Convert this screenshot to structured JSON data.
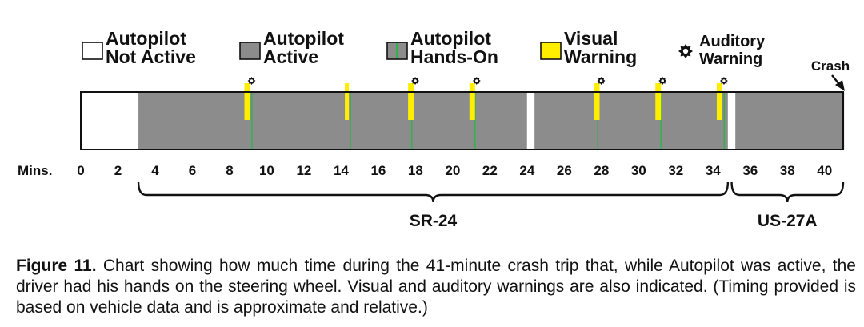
{
  "chart_data": {
    "type": "timeline",
    "x_unit_label": "Mins.",
    "x_range": [
      0,
      41
    ],
    "x_ticks": [
      0,
      2,
      4,
      6,
      8,
      10,
      12,
      14,
      16,
      18,
      20,
      22,
      24,
      26,
      28,
      30,
      32,
      34,
      36,
      38,
      40
    ],
    "legend": [
      {
        "key": "not_active",
        "line1": "Autopilot",
        "line2": "Not Active",
        "color": "#ffffff"
      },
      {
        "key": "active",
        "line1": "Autopilot",
        "line2": "Active",
        "color": "#8c8c8c"
      },
      {
        "key": "hands_on",
        "line1": "Autopilot",
        "line2": "Hands-On",
        "color": "#2db34a"
      },
      {
        "key": "visual_warning",
        "line1": "Visual",
        "line2": "Warning",
        "color": "#ffee00"
      },
      {
        "key": "auditory_warning",
        "line1": "Auditory",
        "line2": "Warning",
        "color": "#111111"
      }
    ],
    "segments": [
      {
        "state": "not_active",
        "start": 0,
        "end": 3.1
      },
      {
        "state": "active",
        "start": 3.1,
        "end": 24.0
      },
      {
        "state": "not_active",
        "start": 24.0,
        "end": 24.4
      },
      {
        "state": "active",
        "start": 24.4,
        "end": 34.8
      },
      {
        "state": "not_active",
        "start": 34.8,
        "end": 35.2
      },
      {
        "state": "active",
        "start": 35.2,
        "end": 41.0
      }
    ],
    "hands_on_times": [
      9.2,
      14.5,
      17.8,
      21.2,
      27.8,
      31.2,
      34.6
    ],
    "visual_warnings": [
      {
        "start": 8.8,
        "end": 9.1
      },
      {
        "start": 14.2,
        "end": 14.4
      },
      {
        "start": 17.6,
        "end": 17.9
      },
      {
        "start": 20.9,
        "end": 21.2
      },
      {
        "start": 27.6,
        "end": 27.9
      },
      {
        "start": 30.9,
        "end": 31.2
      },
      {
        "start": 34.2,
        "end": 34.5
      }
    ],
    "auditory_warnings": [
      9.1,
      17.9,
      21.2,
      27.9,
      31.2,
      34.5
    ],
    "crash": {
      "time": 41.0,
      "label": "Crash"
    },
    "routes": [
      {
        "label": "SR-24",
        "start": 3.1,
        "end": 34.8
      },
      {
        "label": "US-27A",
        "start": 35.0,
        "end": 41.0
      }
    ]
  },
  "caption": {
    "figure_label": "Figure 11.",
    "text": "Chart showing how much time during the 41-minute crash trip that, while Autopilot was active, the driver had his hands on the steering wheel. Visual and auditory warnings are also indicated. (Timing provided is based on vehicle data and is approximate and relative.)"
  }
}
